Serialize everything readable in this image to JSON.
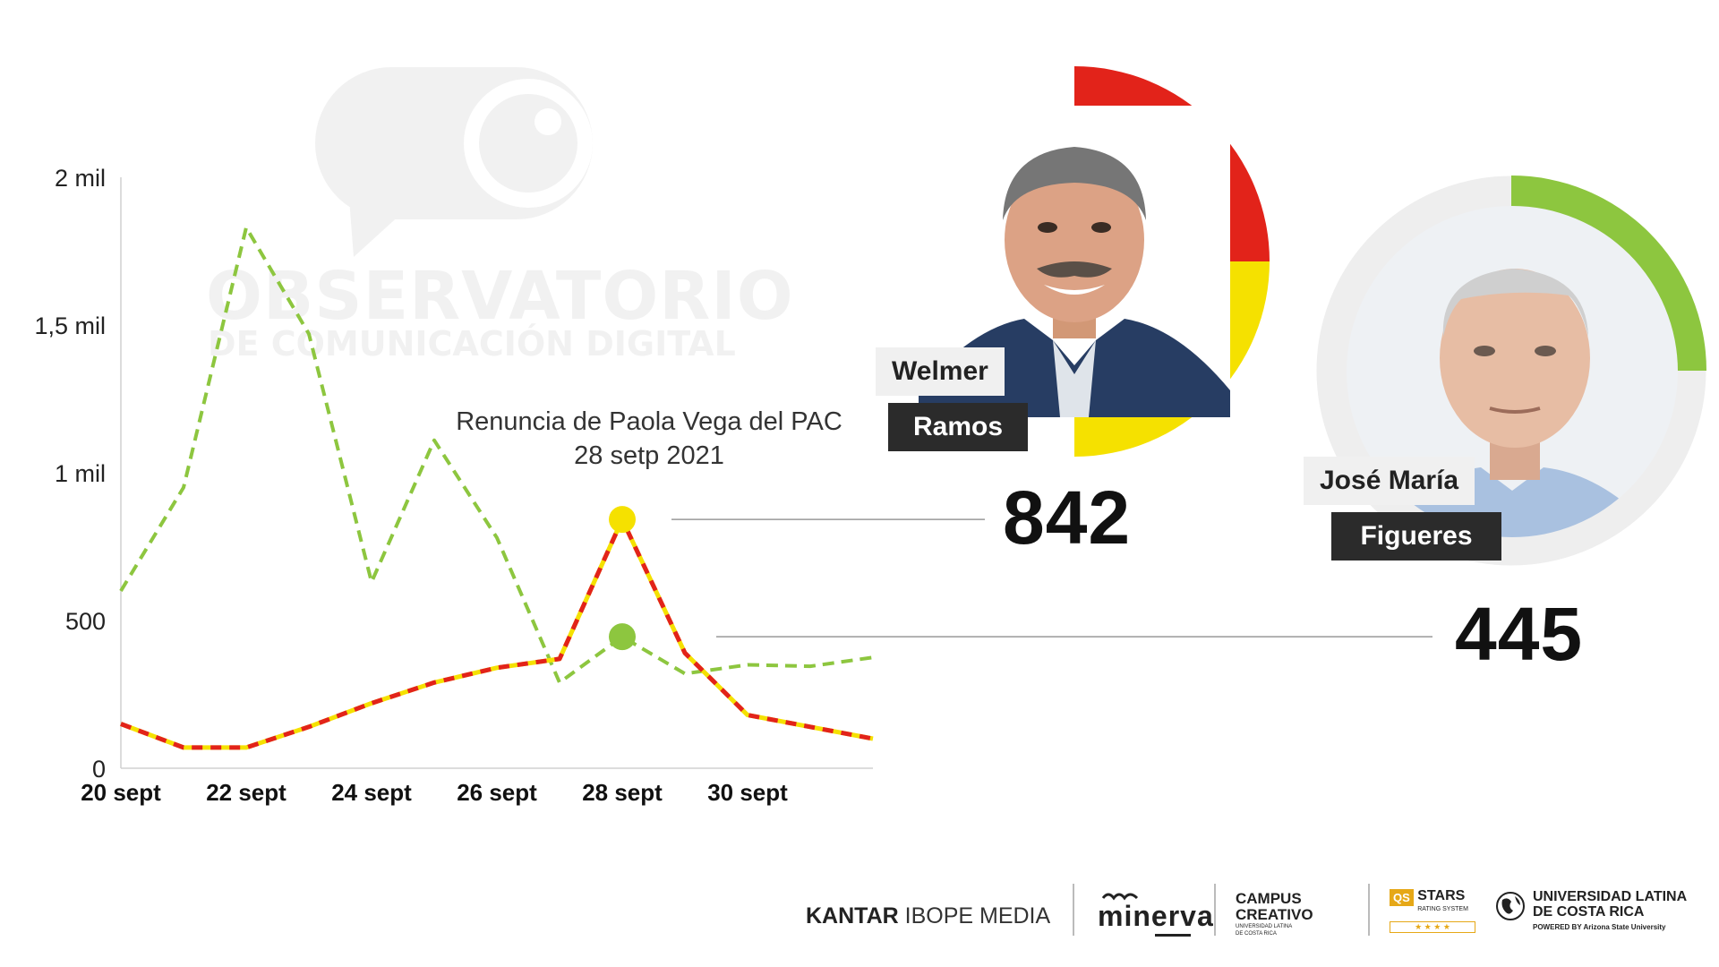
{
  "watermark": {
    "title": "OBSERVATORIO",
    "subtitle": "DE COMUNICACIÓN DIGITAL"
  },
  "chart_data": {
    "type": "line",
    "x": [
      "20 sept",
      "21 sept",
      "22 sept",
      "23 sept",
      "24 sept",
      "25 sept",
      "26 sept",
      "27 sept",
      "28 sept",
      "29 sept",
      "30 sept",
      "1 oct",
      "2 oct"
    ],
    "x_tick_labels": [
      "20 sept",
      "22 sept",
      "24 sept",
      "26 sept",
      "28 sept",
      "30 sept"
    ],
    "y_tick_labels": [
      "0",
      "500",
      "1 mil",
      "1,5 mil",
      "2 mil"
    ],
    "ylim": [
      0,
      2000
    ],
    "series": [
      {
        "name": "",
        "color": "#8dc63f",
        "style": "dashed",
        "values": [
          600,
          950,
          1830,
          1470,
          630,
          1110,
          780,
          290,
          445,
          320,
          350,
          345,
          375
        ]
      },
      {
        "name": "",
        "color": "#f5e100",
        "stripe_color": "#e2231a",
        "style": "striped",
        "values": [
          150,
          70,
          70,
          140,
          220,
          290,
          340,
          370,
          842,
          390,
          180,
          140,
          100
        ]
      }
    ],
    "annotation": {
      "line1": "Renuncia de Paola Vega del PAC",
      "line2": "28 setp 2021",
      "x": "28 sept"
    },
    "highlights": [
      {
        "series": 1,
        "x": "28 sept",
        "value": 842,
        "dot_color": "#f5e100"
      },
      {
        "series": 0,
        "x": "28 sept",
        "value": 445,
        "dot_color": "#8dc63f"
      }
    ]
  },
  "candidates": [
    {
      "first_name": "Welmer",
      "last_name": "Ramos",
      "count": "842",
      "ring_colors": [
        "#e2231a",
        "#f5e100"
      ]
    },
    {
      "first_name": "José María",
      "last_name": "Figueres",
      "count": "445",
      "ring_colors": [
        "#8dc63f",
        "#eeeeee"
      ],
      "ring_fraction": 0.25
    }
  ],
  "footer": {
    "kantar": "KANTAR",
    "ibope": "IBOPE MEDIA",
    "minerva": "minerva",
    "campus_line1": "CAMPUS",
    "campus_line2": "CREATIVO",
    "campus_line3": "UNIVERSIDAD LATINA DE COSTA RICA",
    "qs_badge": "QS",
    "stars": "STARS",
    "stars_sub": "RATING SYSTEM",
    "stars_rating": "★ ★ ★ ★",
    "ulatina_line1": "UNIVERSIDAD LATINA",
    "ulatina_line2": "DE COSTA RICA",
    "ulatina_line3": "POWERED BY Arizona State University"
  }
}
